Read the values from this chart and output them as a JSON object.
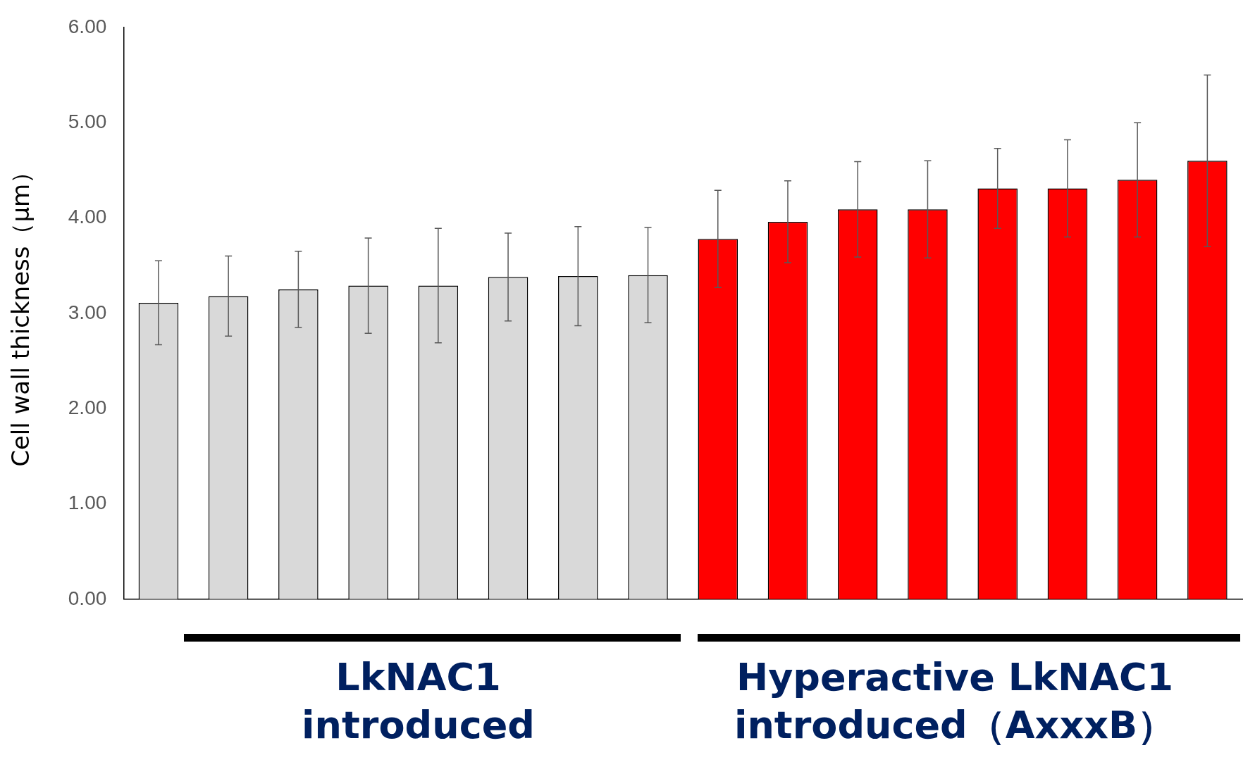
{
  "chart_data": {
    "type": "bar",
    "ylabel": "Cell wall thickness（μm）",
    "categories": [
      null,
      null,
      null,
      null,
      null,
      null,
      null,
      null,
      null,
      null,
      null,
      null,
      null,
      null,
      null,
      null
    ],
    "values": [
      3.11,
      3.18,
      3.25,
      3.29,
      3.29,
      3.38,
      3.39,
      3.4,
      3.78,
      3.96,
      4.09,
      4.09,
      4.31,
      4.31,
      4.4,
      4.6
    ],
    "errors": [
      0.44,
      0.42,
      0.4,
      0.5,
      0.6,
      0.46,
      0.52,
      0.5,
      0.51,
      0.43,
      0.5,
      0.51,
      0.42,
      0.51,
      0.6,
      0.9
    ],
    "colors": [
      "#d9d9d9",
      "#d9d9d9",
      "#d9d9d9",
      "#d9d9d9",
      "#d9d9d9",
      "#d9d9d9",
      "#d9d9d9",
      "#d9d9d9",
      "#ff0000",
      "#ff0000",
      "#ff0000",
      "#ff0000",
      "#ff0000",
      "#ff0000",
      "#ff0000",
      "#ff0000"
    ],
    "ylim": [
      0,
      6
    ],
    "yticks": [
      {
        "value": 0,
        "label": "0.00"
      },
      {
        "value": 1,
        "label": "1.00"
      },
      {
        "value": 2,
        "label": "2.00"
      },
      {
        "value": 3,
        "label": "3.00"
      },
      {
        "value": 4,
        "label": "4.00"
      },
      {
        "value": 5,
        "label": "5.00"
      },
      {
        "value": 6,
        "label": "6.00"
      }
    ],
    "grid": false,
    "legend": false,
    "annotations": [
      "LkNAC1\nintroduced",
      "Hyperactive LkNAC1\nintroduced（AxxxB）"
    ]
  }
}
